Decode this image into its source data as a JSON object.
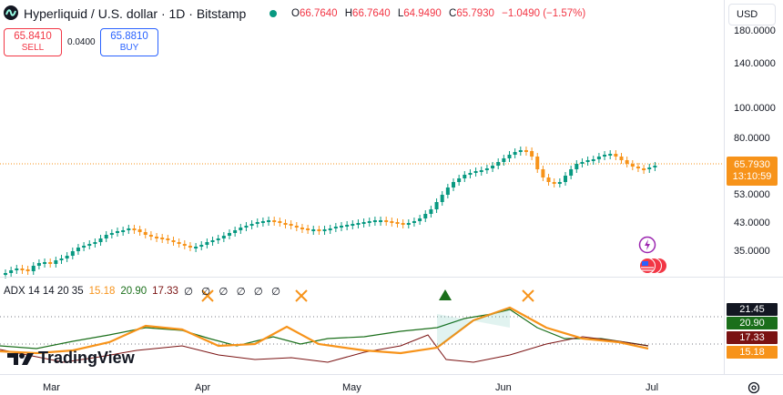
{
  "header": {
    "title": "Hyperliquid / U.S. dollar · 1D · Bitstamp",
    "ohlc": {
      "o_label": "O",
      "o_value": "66.7640",
      "h_label": "H",
      "h_value": "66.7640",
      "l_label": "L",
      "l_value": "64.9490",
      "c_label": "C",
      "c_value": "65.7930",
      "change": "−1.0490 (−1.57%)"
    },
    "currency": "USD",
    "colors": {
      "down": "#f23645",
      "up": "#089981",
      "accent": "#2962ff"
    }
  },
  "trade": {
    "sell_price": "65.8410",
    "sell_label": "SELL",
    "spread": "0.0400",
    "buy_price": "65.8810",
    "buy_label": "BUY"
  },
  "price_axis": {
    "labels": [
      "180.0000",
      "140.0000",
      "100.0000",
      "80.0000",
      "53.0000",
      "43.0000",
      "35.0000"
    ],
    "current_price": "65.7930",
    "countdown": "13:10:59"
  },
  "adx": {
    "name": "ADX 14 14 20 35",
    "values": [
      "15.18",
      "20.90",
      "17.33"
    ],
    "na": "∅ ∅ ∅ ∅ ∅ ∅",
    "axis_values": [
      "21.45",
      "20.90",
      "17.33",
      "15.18"
    ],
    "colors": {
      "adx": "#f7931a",
      "plus_di": "#1b6f1b",
      "minus_di": "#7a1212",
      "gray": "#131722"
    }
  },
  "branding": {
    "logo_text": "TradingView"
  },
  "time_axis": {
    "months": [
      "Mar",
      "Apr",
      "May",
      "Jun",
      "Jul"
    ]
  },
  "icons": [
    "hyperliquid-icon",
    "lightning-icon",
    "us-flag-icon",
    "settings-icon"
  ]
}
